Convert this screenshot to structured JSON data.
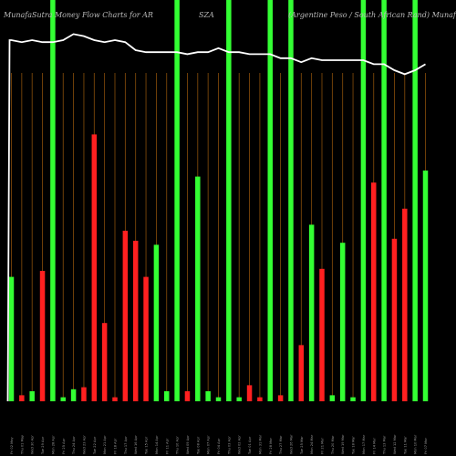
{
  "title_left": "MunafaSutra  Money Flow  Charts for AR",
  "title_mid": "SZA",
  "title_right": "(Argentine   Peso   / South African  Rand) MunafaSutra.com",
  "colors": {
    "background": "#000000",
    "up": "#33ff33",
    "down": "#ff2020",
    "grid": "#8a4f0a",
    "line": "#ffffff"
  },
  "chart_data": {
    "type": "bar",
    "title": "MunafaSutra  Money Flow  Charts for ARSZA (Argentine   Peso   / South African  Rand) MunafaSutra.com",
    "ylim": [
      0,
      100
    ],
    "categories": [
      "Fri 02 May",
      "Thu 01 May",
      "Wed 30 Apr",
      "Tue 29 Apr",
      "Mon 28 Apr",
      "Fri 25 Apr",
      "Thu 24 Apr",
      "Wed 23 Apr",
      "Tue 22 Apr",
      "Mon 21 Apr",
      "Fri 18 Apr",
      "Thu 17 Apr",
      "Wed 16 Apr",
      "Tue 15 Apr",
      "Mon 14 Apr",
      "Fri 11 Apr",
      "Thu 10 Apr",
      "Wed 09 Apr",
      "Tue 08 Apr",
      "Mon 07 Apr",
      "Fri 04 Apr",
      "Thu 03 Apr",
      "Wed 02 Apr",
      "Tue 01 Apr",
      "Mon 31 Mar",
      "Fri 28 Mar",
      "Thu 27 Mar",
      "Wed 26 Mar",
      "Tue 25 Mar",
      "Mon 24 Mar",
      "Fri 21 Mar",
      "Thu 20 Mar",
      "Wed 19 Mar",
      "Tue 18 Mar",
      "Mon 17 Mar",
      "Fri 14 Mar",
      "Thu 13 Mar",
      "Wed 12 Mar",
      "Tue 11 Mar",
      "Mon 10 Mar",
      "Fri 07 Mar"
    ],
    "series": [
      {
        "values": [
          31,
          1.5,
          2.5,
          32.5,
          100,
          1,
          3,
          3.5,
          66.5,
          19.5,
          1,
          42.5,
          40,
          31,
          39,
          2.5,
          100,
          2.5,
          56,
          2.5,
          1,
          100,
          1,
          4,
          1,
          100,
          1.5,
          100,
          14,
          44,
          33,
          1.5,
          39.5,
          1,
          100,
          54.5,
          100,
          40.5,
          48,
          100,
          57.5
        ],
        "colors": [
          "up",
          "down",
          "up",
          "down",
          "up",
          "up",
          "up",
          "down",
          "down",
          "down",
          "down",
          "down",
          "down",
          "down",
          "up",
          "up",
          "up",
          "down",
          "up",
          "up",
          "up",
          "up",
          "up",
          "down",
          "down",
          "up",
          "down",
          "up",
          "down",
          "up",
          "down",
          "up",
          "up",
          "up",
          "up",
          "down",
          "up",
          "down",
          "down",
          "up",
          "up"
        ]
      },
      {
        "values": [
          90,
          89.5,
          90,
          89.5,
          89.5,
          90,
          91.5,
          91,
          90,
          89.5,
          90,
          89.5,
          87.5,
          87,
          87,
          87,
          87,
          86.5,
          87,
          87,
          88,
          87,
          87,
          86.5,
          86.5,
          86.5,
          85.5,
          85.5,
          84.5,
          85.5,
          85,
          85,
          85,
          85,
          85,
          84,
          84,
          82.5,
          81.5,
          82.5,
          84
        ],
        "colors": []
      }
    ]
  }
}
